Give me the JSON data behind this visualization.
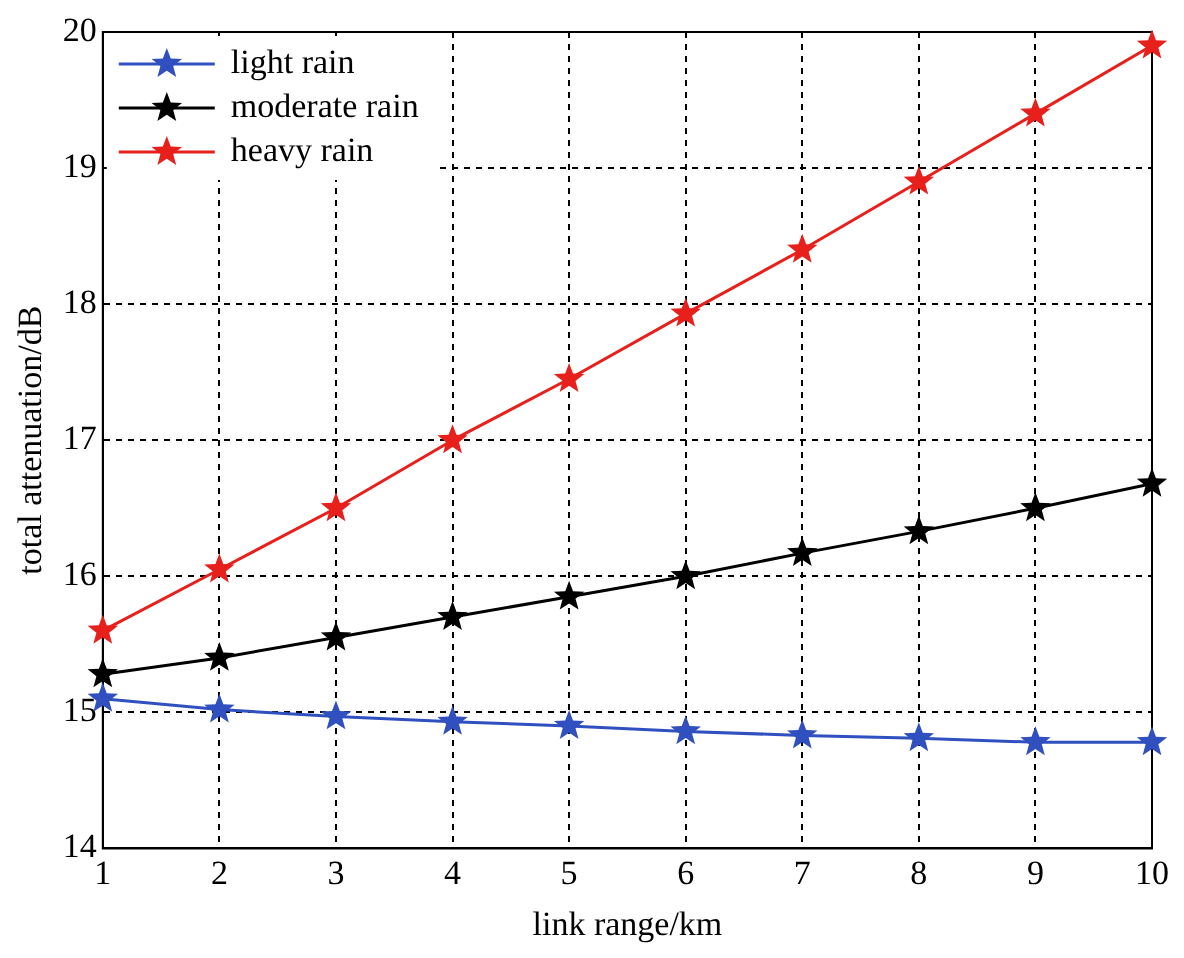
{
  "chart_data": {
    "type": "line",
    "xlabel": "link range/km",
    "ylabel": "total attenuation/dB",
    "x": [
      1,
      2,
      3,
      4,
      5,
      6,
      7,
      8,
      9,
      10
    ],
    "series": [
      {
        "name": "light rain",
        "color": "#3050c0",
        "values": [
          15.1,
          15.02,
          14.97,
          14.93,
          14.9,
          14.86,
          14.83,
          14.81,
          14.78,
          14.78
        ]
      },
      {
        "name": "moderate rain",
        "color": "#000000",
        "values": [
          15.28,
          15.4,
          15.55,
          15.7,
          15.85,
          16.0,
          16.17,
          16.33,
          16.5,
          16.68
        ]
      },
      {
        "name": "heavy rain",
        "color": "#e8201c",
        "values": [
          15.6,
          16.05,
          16.5,
          17.0,
          17.45,
          17.93,
          18.4,
          18.9,
          19.4,
          19.9
        ]
      }
    ],
    "xlim": [
      1,
      10
    ],
    "xticks": [
      1,
      2,
      3,
      4,
      5,
      6,
      7,
      8,
      9,
      10
    ],
    "ylim": [
      14,
      20
    ],
    "yticks": [
      14,
      15,
      16,
      17,
      18,
      19,
      20
    ],
    "grid": true,
    "legend": "top left",
    "marker": "star",
    "line_style": "solid"
  }
}
